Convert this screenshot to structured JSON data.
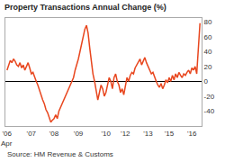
{
  "chart_data": {
    "type": "line",
    "title": "Property Transactions Annual Change (%)",
    "source": "Source: HM Revenue & Customs",
    "annotations": [
      "Apr"
    ],
    "categories": [
      "'06",
      null,
      null,
      null,
      null,
      null,
      null,
      null,
      null,
      null,
      null,
      null,
      null,
      null,
      null,
      "'07",
      null,
      null,
      null,
      null,
      null,
      null,
      null,
      null,
      null,
      null,
      null,
      null,
      null,
      "'08",
      null,
      null,
      null,
      null,
      null,
      null,
      null,
      null,
      null,
      null,
      null,
      null,
      null,
      null,
      "'09",
      null,
      null,
      null,
      null,
      null,
      null,
      null,
      null,
      null,
      null,
      null,
      null,
      null,
      null,
      null,
      null,
      "'10",
      null,
      null,
      null,
      null,
      null,
      null,
      null,
      null,
      null,
      null,
      null,
      "'12",
      null,
      null,
      null,
      null,
      null,
      null,
      null,
      null,
      null,
      null,
      null,
      null,
      null,
      "'13",
      null,
      null,
      null,
      null,
      null,
      null,
      null,
      null,
      null,
      null,
      null,
      null,
      "'15",
      null,
      null,
      null,
      null,
      null,
      null,
      null,
      null,
      null,
      null,
      null,
      null,
      null,
      "'16",
      null,
      null,
      null,
      null,
      null
    ],
    "values": [
      15,
      22,
      28,
      25,
      30,
      27,
      22,
      20,
      25,
      18,
      22,
      15,
      20,
      25,
      18,
      10,
      12,
      5,
      0,
      -5,
      -12,
      -18,
      -25,
      -30,
      -38,
      -42,
      -48,
      -55,
      -52,
      -50,
      -45,
      -50,
      -40,
      -35,
      -30,
      -25,
      -20,
      -15,
      -10,
      -5,
      0,
      5,
      15,
      22,
      30,
      40,
      50,
      62,
      70,
      75,
      65,
      45,
      25,
      10,
      0,
      -15,
      -25,
      -15,
      -5,
      -10,
      -20,
      -15,
      -5,
      5,
      0,
      -10,
      5,
      10,
      0,
      -5,
      -15,
      -10,
      -18,
      -5,
      5,
      0,
      8,
      12,
      10,
      18,
      22,
      25,
      30,
      22,
      28,
      32,
      25,
      20,
      15,
      10,
      12,
      5,
      0,
      -5,
      -8,
      -3,
      -10,
      -5,
      2,
      -2,
      5,
      0,
      8,
      2,
      10,
      5,
      12,
      8,
      5,
      10,
      8,
      12,
      15,
      10,
      18,
      15,
      20,
      10,
      40,
      78
    ],
    "color": "#e8461e",
    "ylim": [
      -60,
      85
    ],
    "yticks": [
      -40,
      -20,
      0,
      20,
      40,
      60,
      80
    ],
    "grid": false
  }
}
